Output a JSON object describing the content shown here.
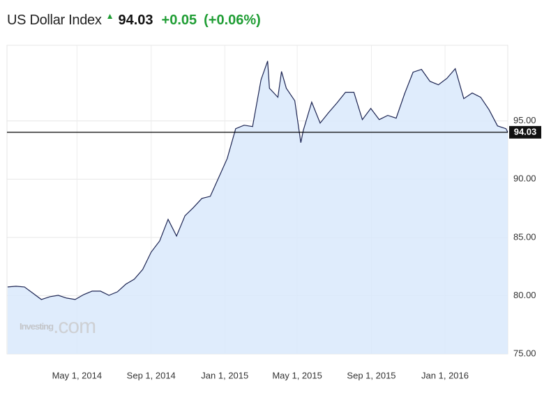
{
  "chart_data": {
    "type": "area",
    "title": "US Dollar Index",
    "last_price": "94.03",
    "last_value": 94.03,
    "change": "+0.05",
    "change_pct": "(+0.06%)",
    "watermark": "Investing",
    "watermark_suffix": ".com",
    "x": [
      "2014-01-06",
      "2014-01-20",
      "2014-02-03",
      "2014-02-17",
      "2014-03-03",
      "2014-03-17",
      "2014-03-31",
      "2014-04-14",
      "2014-04-28",
      "2014-05-12",
      "2014-05-26",
      "2014-06-09",
      "2014-06-23",
      "2014-07-07",
      "2014-07-21",
      "2014-08-04",
      "2014-08-18",
      "2014-09-01",
      "2014-09-15",
      "2014-09-29",
      "2014-10-13",
      "2014-10-27",
      "2014-11-10",
      "2014-11-24",
      "2014-12-08",
      "2014-12-22",
      "2015-01-05",
      "2015-01-19",
      "2015-02-02",
      "2015-02-16",
      "2015-03-02",
      "2015-03-13",
      "2015-03-16",
      "2015-03-30",
      "2015-04-05",
      "2015-04-13",
      "2015-04-27",
      "2015-05-07",
      "2015-05-11",
      "2015-05-25",
      "2015-06-08",
      "2015-06-22",
      "2015-07-06",
      "2015-07-20",
      "2015-08-03",
      "2015-08-17",
      "2015-08-31",
      "2015-09-14",
      "2015-09-28",
      "2015-10-12",
      "2015-10-26",
      "2015-11-09",
      "2015-11-23",
      "2015-12-07",
      "2015-12-21",
      "2016-01-04",
      "2016-01-18",
      "2016-02-01",
      "2016-02-15",
      "2016-02-29",
      "2016-03-14",
      "2016-03-28",
      "2016-04-11",
      "2016-04-14"
    ],
    "series": [
      {
        "name": "US Dollar Index",
        "color": "#1c2452",
        "fill": "#d9e9fb",
        "values": [
          80.75,
          80.81,
          80.75,
          80.21,
          79.67,
          79.91,
          80.03,
          79.79,
          79.67,
          80.09,
          80.39,
          80.39,
          80.03,
          80.33,
          80.99,
          81.41,
          82.25,
          83.74,
          84.7,
          86.56,
          85.12,
          86.86,
          87.57,
          88.35,
          88.53,
          90.15,
          91.77,
          94.34,
          94.64,
          94.52,
          98.53,
          100.15,
          97.81,
          97.04,
          99.25,
          97.81,
          96.74,
          93.14,
          94.16,
          96.62,
          94.82,
          95.72,
          96.56,
          97.46,
          97.46,
          95.12,
          96.08,
          95.12,
          95.48,
          95.24,
          97.34,
          99.19,
          99.43,
          98.41,
          98.11,
          98.65,
          99.49,
          96.92,
          97.4,
          97.04,
          95.96,
          94.58,
          94.34,
          94.03
        ]
      }
    ],
    "xlim": [
      "2014-01-05",
      "2016-04-14"
    ],
    "xticks": [
      {
        "value": "2014-05-01",
        "label": "May 1, 2014"
      },
      {
        "value": "2014-09-01",
        "label": "Sep 1, 2014"
      },
      {
        "value": "2015-01-01",
        "label": "Jan 1, 2015"
      },
      {
        "value": "2015-05-01",
        "label": "May 1, 2015"
      },
      {
        "value": "2015-09-01",
        "label": "Sep 1, 2015"
      },
      {
        "value": "2016-01-01",
        "label": "Jan 1, 2016"
      }
    ],
    "ylim": [
      75,
      101.5
    ],
    "yticks": [
      {
        "value": 75,
        "label": "75.00"
      },
      {
        "value": 80,
        "label": "80.00"
      },
      {
        "value": 85,
        "label": "85.00"
      },
      {
        "value": 90,
        "label": "90.00"
      },
      {
        "value": 95,
        "label": "95.00"
      }
    ],
    "grid": true
  }
}
